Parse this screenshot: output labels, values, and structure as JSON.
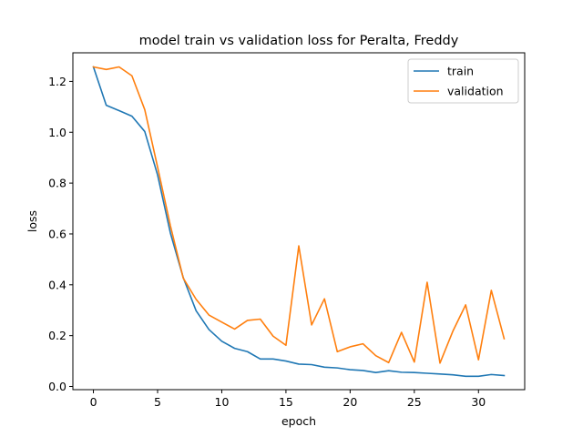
{
  "chart_data": {
    "type": "line",
    "title": "model train vs validation loss for Peralta, Freddy",
    "xlabel": "epoch",
    "ylabel": "loss",
    "xlim": [
      -1.6,
      33.6
    ],
    "ylim": [
      -0.0125,
      1.3125
    ],
    "xticks": [
      0,
      5,
      10,
      15,
      20,
      25,
      30
    ],
    "yticks": [
      0.0,
      0.2,
      0.4,
      0.6,
      0.8,
      1.0,
      1.2
    ],
    "ytick_labels": [
      "0.0",
      "0.2",
      "0.4",
      "0.6",
      "0.8",
      "1.0",
      "1.2"
    ],
    "grid": false,
    "legend": "top-right",
    "x": [
      0,
      1,
      2,
      3,
      4,
      5,
      6,
      7,
      8,
      9,
      10,
      11,
      12,
      13,
      14,
      15,
      16,
      17,
      18,
      19,
      20,
      21,
      22,
      23,
      24,
      25,
      26,
      27,
      28,
      29,
      30,
      31,
      32
    ],
    "series": [
      {
        "name": "train",
        "color": "#1f77b4",
        "values": [
          1.257,
          1.106,
          1.085,
          1.063,
          1.003,
          0.832,
          0.603,
          0.428,
          0.298,
          0.224,
          0.178,
          0.15,
          0.137,
          0.108,
          0.108,
          0.1,
          0.088,
          0.086,
          0.076,
          0.073,
          0.066,
          0.063,
          0.055,
          0.062,
          0.056,
          0.055,
          0.052,
          0.049,
          0.046,
          0.04,
          0.04,
          0.047,
          0.043
        ]
      },
      {
        "name": "validation",
        "color": "#ff7f0e",
        "values": [
          1.257,
          1.247,
          1.257,
          1.222,
          1.089,
          0.863,
          0.632,
          0.426,
          0.343,
          0.281,
          0.253,
          0.226,
          0.26,
          0.265,
          0.198,
          0.162,
          0.553,
          0.242,
          0.345,
          0.137,
          0.156,
          0.168,
          0.121,
          0.094,
          0.213,
          0.096,
          0.41,
          0.092,
          0.217,
          0.321,
          0.105,
          0.378,
          0.188
        ]
      }
    ]
  }
}
